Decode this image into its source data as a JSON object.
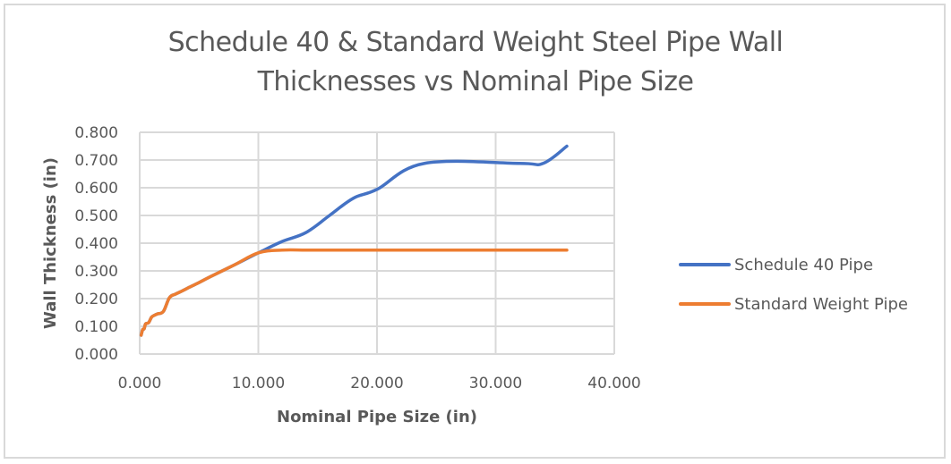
{
  "chart_data": {
    "type": "line",
    "title": "Schedule 40 & Standard Weight Steel Pipe Wall Thicknesses vs Nominal Pipe Size",
    "title_lines": [
      "Schedule 40 & Standard Weight Steel Pipe Wall",
      "Thicknesses vs Nominal Pipe Size"
    ],
    "xlabel": "Nominal Pipe Size (in)",
    "ylabel": "Wall Thickness (in)",
    "xlim": [
      0,
      40
    ],
    "ylim": [
      0,
      0.8
    ],
    "x_ticks": [
      "0.000",
      "10.000",
      "20.000",
      "30.000",
      "40.000"
    ],
    "y_ticks": [
      "0.000",
      "0.100",
      "0.200",
      "0.300",
      "0.400",
      "0.500",
      "0.600",
      "0.700",
      "0.800"
    ],
    "grid": true,
    "smooth": true,
    "legend_position": "right",
    "series": [
      {
        "name": "Schedule 40 Pipe",
        "color": "#4472C4",
        "x": [
          0.125,
          0.25,
          0.375,
          0.5,
          0.75,
          1,
          1.25,
          1.5,
          2,
          2.5,
          3,
          3.5,
          4,
          5,
          6,
          8,
          10,
          12,
          14,
          16,
          18,
          20,
          24,
          32,
          34,
          36
        ],
        "values": [
          0.068,
          0.088,
          0.091,
          0.109,
          0.113,
          0.133,
          0.14,
          0.145,
          0.154,
          0.203,
          0.216,
          0.226,
          0.237,
          0.258,
          0.28,
          0.322,
          0.365,
          0.406,
          0.438,
          0.5,
          0.562,
          0.594,
          0.688,
          0.688,
          0.688,
          0.75
        ]
      },
      {
        "name": "Standard Weight Pipe",
        "color": "#ED7D31",
        "x": [
          0.125,
          0.25,
          0.375,
          0.5,
          0.75,
          1,
          1.25,
          1.5,
          2,
          2.5,
          3,
          3.5,
          4,
          5,
          6,
          8,
          10,
          12,
          14,
          16,
          18,
          20,
          24,
          32,
          34,
          36
        ],
        "values": [
          0.068,
          0.088,
          0.091,
          0.109,
          0.113,
          0.133,
          0.14,
          0.145,
          0.154,
          0.203,
          0.216,
          0.226,
          0.237,
          0.258,
          0.28,
          0.322,
          0.365,
          0.375,
          0.375,
          0.375,
          0.375,
          0.375,
          0.375,
          0.375,
          0.375,
          0.375
        ]
      }
    ]
  },
  "colors": {
    "grid": "#d9d9d9",
    "text": "#595959",
    "frame": "#d9d9d9"
  }
}
